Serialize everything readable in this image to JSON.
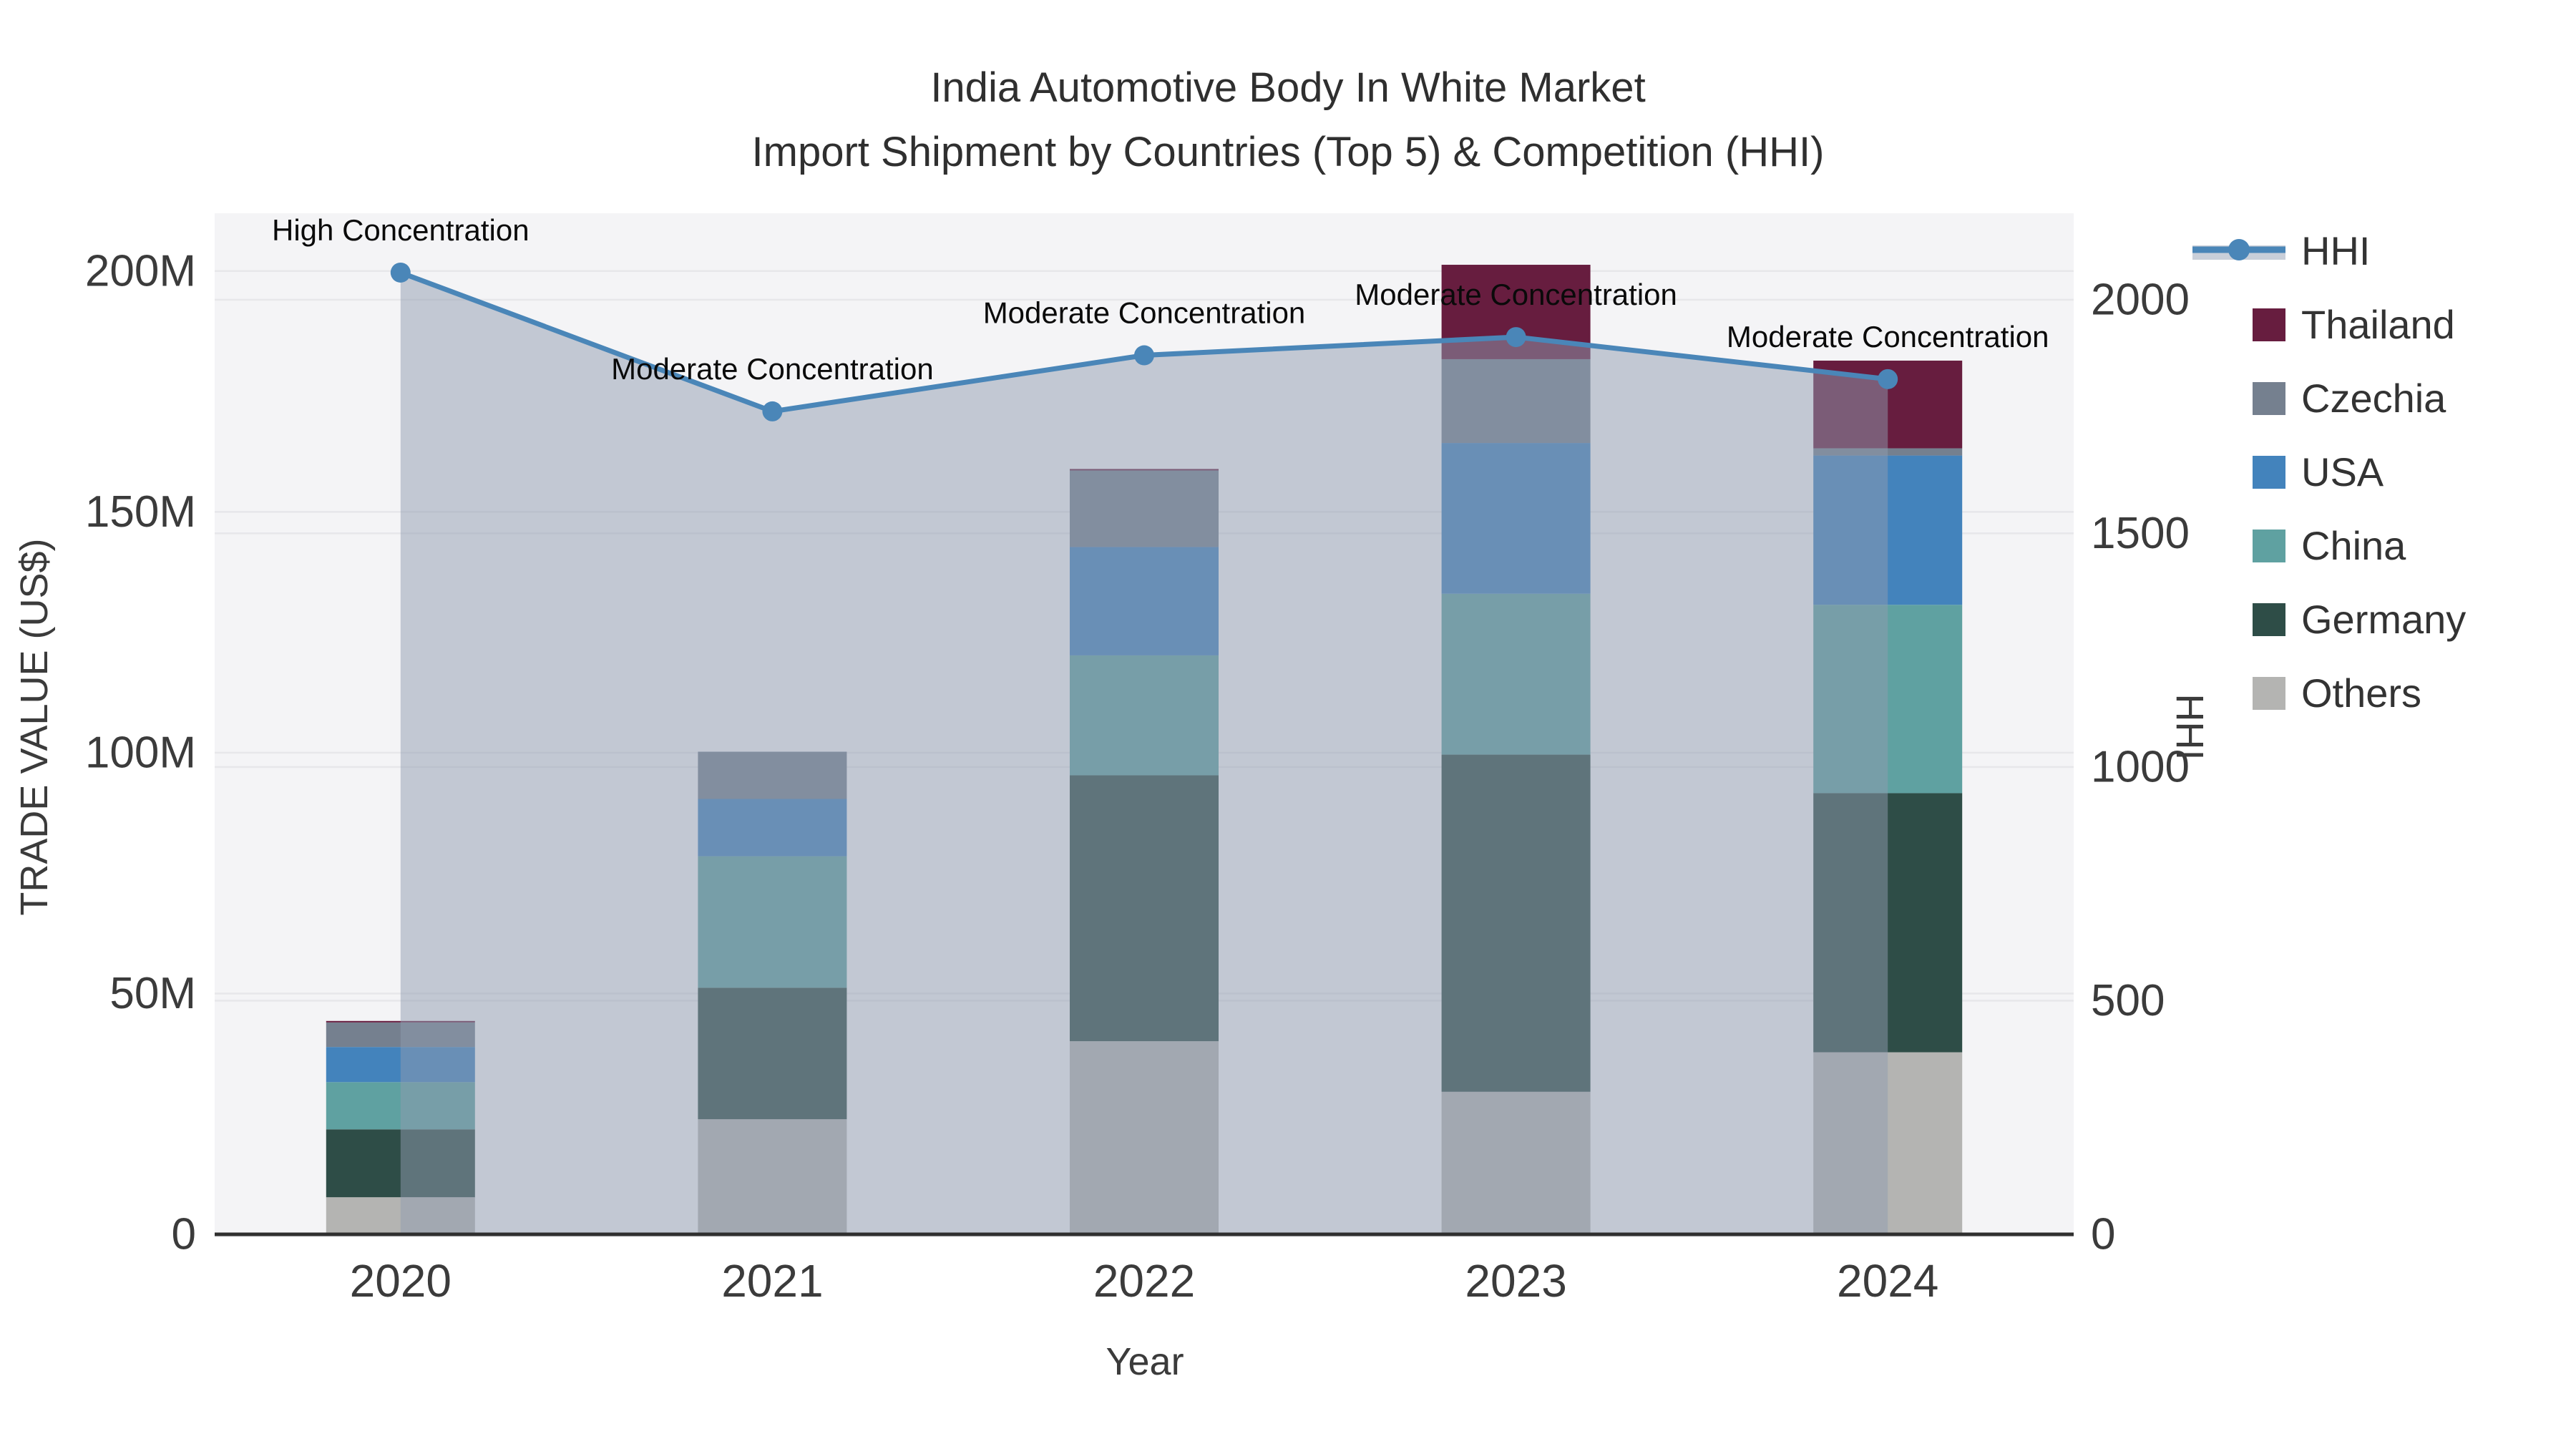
{
  "figure": {
    "title_line1": "India Automotive Body In White Market",
    "title_line2": "Import Shipment by Countries (Top 5) & Competition (HHI)"
  },
  "axes": {
    "x_title": "Year",
    "y_left_title": "TRADE VALUE (US$)",
    "y_right_title": "HHI",
    "y_left_tick_labels": [
      "0",
      "50M",
      "100M",
      "150M",
      "200M"
    ],
    "y_left_tick_values": [
      0,
      50,
      100,
      150,
      200
    ],
    "y_right_tick_labels": [
      "0",
      "500",
      "1000",
      "1500",
      "2000"
    ],
    "y_right_tick_values": [
      0,
      500,
      1000,
      1500,
      2000
    ]
  },
  "chart_data": {
    "type": "bar+line",
    "title": "India Automotive Body In White Market — Import Shipment by Countries (Top 5) & Competition (HHI)",
    "categories": [
      "2020",
      "2021",
      "2022",
      "2023",
      "2024"
    ],
    "xlabel": "Year",
    "ylabel_left": "TRADE VALUE (US$)",
    "ylabel_right": "HHI",
    "y_left_range_millions": [
      0,
      212
    ],
    "y_right_range": [
      0,
      2185
    ],
    "grid": true,
    "legend_position": "right",
    "bar_unit": "million US$",
    "bar_stack_order_bottom_to_top": [
      "Others",
      "Germany",
      "China",
      "USA",
      "Czechia",
      "Thailand"
    ],
    "series": [
      {
        "name": "Others",
        "color": "#b4b4b2",
        "values": [
          7.7,
          23.9,
          40.1,
          29.6,
          37.8
        ]
      },
      {
        "name": "Germany",
        "color": "#2e4d47",
        "values": [
          14.1,
          27.3,
          55.2,
          70.0,
          53.8
        ]
      },
      {
        "name": "China",
        "color": "#5fa1a1",
        "values": [
          9.8,
          27.3,
          24.9,
          33.4,
          39.1
        ]
      },
      {
        "name": "USA",
        "color": "#4383bc",
        "values": [
          7.3,
          11.9,
          22.5,
          31.3,
          31.0
        ]
      },
      {
        "name": "Czechia",
        "color": "#75808f",
        "values": [
          5.1,
          9.8,
          15.9,
          17.4,
          1.5
        ]
      },
      {
        "name": "Thailand",
        "color": "#671d3f",
        "values": [
          0.3,
          0.0,
          0.3,
          19.6,
          18.2
        ]
      }
    ],
    "line_series": {
      "name": "HHI",
      "color": "#4a86b8",
      "area_color": "rgba(143,155,175,0.5)",
      "values": [
        2058,
        1761,
        1881,
        1920,
        1830
      ]
    },
    "annotations": [
      {
        "category": "2020",
        "text": "High Concentration"
      },
      {
        "category": "2021",
        "text": "Moderate Concentration"
      },
      {
        "category": "2022",
        "text": "Moderate Concentration"
      },
      {
        "category": "2023",
        "text": "Moderate Concentration"
      },
      {
        "category": "2024",
        "text": "Moderate Concentration"
      }
    ],
    "legend_items": [
      "HHI",
      "Thailand",
      "Czechia",
      "USA",
      "China",
      "Germany",
      "Others"
    ]
  },
  "colors": {
    "plot_bg": "#f4f4f6",
    "grid": "#e7e7ea",
    "axis_line": "#2f2f2f",
    "tick_text": "#3b3b3b",
    "annotation_text": "#0a0a0a",
    "legend_area_swatch": "#c9cfd9"
  }
}
